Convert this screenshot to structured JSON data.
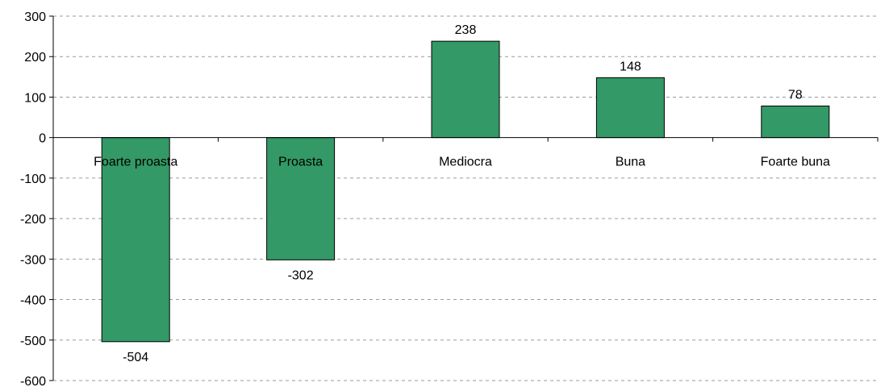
{
  "chart_data": {
    "type": "bar",
    "title": "",
    "xlabel": "",
    "ylabel": "",
    "categories": [
      "Foarte proasta",
      "Proasta",
      "Mediocra",
      "Buna",
      "Foarte buna"
    ],
    "values": [
      -504,
      -302,
      238,
      148,
      78
    ],
    "data_labels": [
      "-504",
      "-302",
      "238",
      "148",
      "78"
    ],
    "ylim": [
      -600,
      300
    ],
    "yticks": [
      300,
      200,
      100,
      0,
      -100,
      -200,
      -300,
      -400,
      -500,
      -600
    ],
    "ytick_labels": [
      "300",
      "200",
      "100",
      "0",
      "-100",
      "-200",
      "-300",
      "-400",
      "-500",
      "-600"
    ],
    "grid": true,
    "legend": "none",
    "colors": {
      "bar": "#339966",
      "grid": "#9a9a9a",
      "axis": "#000000"
    }
  }
}
